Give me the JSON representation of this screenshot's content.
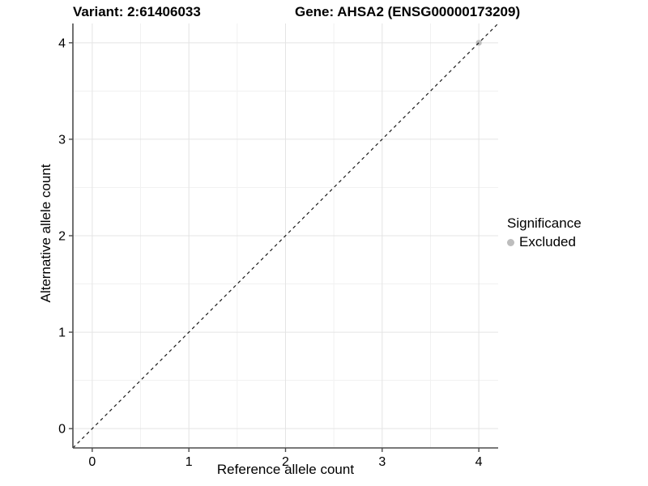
{
  "chart_data": {
    "type": "scatter",
    "titles": {
      "variant": "Variant: 2:61406033",
      "gene": "Gene: AHSA2 (ENSG00000173209)"
    },
    "xlabel": "Reference allele count",
    "ylabel": "Alternative allele count",
    "xlim": [
      -0.2,
      4.2
    ],
    "ylim": [
      -0.2,
      4.2
    ],
    "x_ticks": [
      0,
      1,
      2,
      3,
      4
    ],
    "y_ticks": [
      0,
      1,
      2,
      3,
      4
    ],
    "minor_grid_step": 0.5,
    "grid": "major+minor",
    "series": [
      {
        "name": "Excluded",
        "marker": "circle",
        "color": "#bdbdbd",
        "points": [
          {
            "x": 4,
            "y": 4
          }
        ]
      }
    ],
    "reference_line": {
      "shape": "identity y=x",
      "style": "dashed",
      "color": "#1a1a1a",
      "from": [
        -0.2,
        -0.2
      ],
      "to": [
        4.2,
        4.2
      ]
    },
    "legend": {
      "title": "Significance",
      "position": "right",
      "items": [
        {
          "label": "Excluded",
          "color": "#bdbdbd",
          "marker": "circle"
        }
      ]
    }
  },
  "style_colors": {
    "background": "#ffffff",
    "grid_major": "#e4e4e4",
    "grid_minor": "#f1f1f1",
    "axis_line": "#4d4d4d",
    "tick_mark": "#4d4d4d",
    "text": "#000000"
  }
}
